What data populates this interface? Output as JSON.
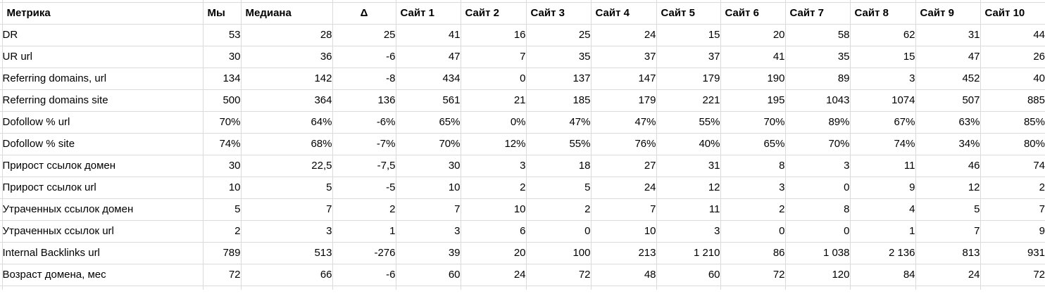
{
  "table": {
    "columns": [
      "Метрика",
      "Мы",
      "Медиана",
      "Δ",
      "Сайт 1",
      "Сайт 2",
      "Сайт 3",
      "Сайт 4",
      "Сайт 5",
      "Сайт 6",
      "Сайт 7",
      "Сайт 8",
      "Сайт 9",
      "Сайт 10"
    ],
    "delta_colors": {
      "green": "#d9ead3",
      "red": "#f4cccc",
      "gray": "#b7b7b7"
    },
    "gridline_color": "#dadada",
    "rows": [
      {
        "metric": "DR",
        "we": "53",
        "median": "28",
        "delta": "25",
        "delta_color": "green",
        "sites": [
          "41",
          "16",
          "25",
          "24",
          "15",
          "20",
          "58",
          "62",
          "31",
          "44"
        ]
      },
      {
        "metric": "UR url",
        "we": "30",
        "median": "36",
        "delta": "-6",
        "delta_color": "red",
        "sites": [
          "47",
          "7",
          "35",
          "37",
          "37",
          "41",
          "35",
          "15",
          "47",
          "26"
        ]
      },
      {
        "metric": "Referring domains, url",
        "we": "134",
        "median": "142",
        "delta": "-8",
        "delta_color": "red",
        "sites": [
          "434",
          "0",
          "137",
          "147",
          "179",
          "190",
          "89",
          "3",
          "452",
          "40"
        ]
      },
      {
        "metric": "Referring domains site",
        "we": "500",
        "median": "364",
        "delta": "136",
        "delta_color": "green",
        "sites": [
          "561",
          "21",
          "185",
          "179",
          "221",
          "195",
          "1043",
          "1074",
          "507",
          "885"
        ]
      },
      {
        "metric": "Dofollow % url",
        "we": "70%",
        "median": "64%",
        "delta": "-6%",
        "delta_color": "red",
        "sites": [
          "65%",
          "0%",
          "47%",
          "47%",
          "55%",
          "70%",
          "89%",
          "67%",
          "63%",
          "85%"
        ]
      },
      {
        "metric": "Dofollow % site",
        "we": "74%",
        "median": "68%",
        "delta": "-7%",
        "delta_color": "gray",
        "sites": [
          "70%",
          "12%",
          "55%",
          "76%",
          "40%",
          "65%",
          "70%",
          "74%",
          "34%",
          "80%"
        ]
      },
      {
        "metric": "Прирост ссылок домен",
        "we": "30",
        "median": "22,5",
        "delta": "-7,5",
        "delta_color": "red",
        "sites": [
          "30",
          "3",
          "18",
          "27",
          "31",
          "8",
          "3",
          "11",
          "46",
          "74"
        ]
      },
      {
        "metric": "Прирост ссылок url",
        "we": "10",
        "median": "5",
        "delta": "-5",
        "delta_color": "red",
        "sites": [
          "10",
          "2",
          "5",
          "24",
          "12",
          "3",
          "0",
          "9",
          "12",
          "2"
        ]
      },
      {
        "metric": "Утраченных ссылок домен",
        "we": "5",
        "median": "7",
        "delta": "2",
        "delta_color": "green",
        "sites": [
          "7",
          "10",
          "2",
          "7",
          "11",
          "2",
          "8",
          "4",
          "5",
          "7"
        ]
      },
      {
        "metric": "Утраченных ссылок url",
        "we": "2",
        "median": "3",
        "delta": "1",
        "delta_color": "green",
        "sites": [
          "3",
          "6",
          "0",
          "10",
          "3",
          "0",
          "0",
          "1",
          "7",
          "9"
        ]
      },
      {
        "metric": "Internal Backlinks url",
        "we": "789",
        "median": "513",
        "delta": "-276",
        "delta_color": "red",
        "sites": [
          "39",
          "20",
          "100",
          "213",
          "1 210",
          "86",
          "1 038",
          "2 136",
          "813",
          "931"
        ]
      },
      {
        "metric": "Возраст домена, мес",
        "we": "72",
        "median": "66",
        "delta": "-6",
        "delta_color": "red",
        "sites": [
          "60",
          "24",
          "72",
          "48",
          "60",
          "72",
          "120",
          "84",
          "24",
          "72"
        ]
      }
    ]
  }
}
